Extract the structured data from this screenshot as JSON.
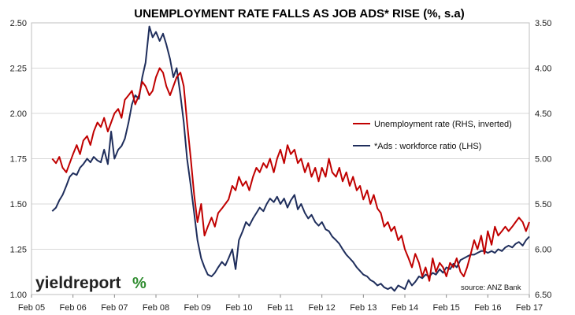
{
  "chart_data": {
    "type": "line",
    "title": "UNEMPLOYMENT RATE FALLS AS JOB ADS* RISE  (%, s.a)",
    "x_tick_labels": [
      "Feb 05",
      "Feb 06",
      "Feb 07",
      "Feb 08",
      "Feb 09",
      "Feb 10",
      "Feb 11",
      "Feb 12",
      "Feb 13",
      "Feb 14",
      "Feb 15",
      "Feb 16",
      "Feb 17"
    ],
    "x_range": [
      2005.08,
      2017.08
    ],
    "left_axis": {
      "ylim": [
        1.0,
        2.5
      ],
      "ticks": [
        "1.00",
        "1.25",
        "1.50",
        "1.75",
        "2.00",
        "2.25",
        "2.50"
      ]
    },
    "right_axis": {
      "ylim": [
        3.5,
        6.5
      ],
      "inverted": true,
      "ticks": [
        "3.50",
        "4.00",
        "4.50",
        "5.00",
        "5.50",
        "6.00",
        "6.50"
      ]
    },
    "legend_placement": "center-right",
    "source": "source: ANZ Bank",
    "logo": {
      "text": "yieldreport",
      "mark": "%"
    },
    "colors": {
      "unemployment": "#c00000",
      "ads": "#1f2e5c",
      "grid": "#d9d9d9",
      "logo_green": "#2e8b2e",
      "logo_red": "#cc2222"
    },
    "series": [
      {
        "name": "Unemployment rate (RHS, inverted)",
        "axis": "right",
        "color": "#c00000",
        "points": [
          [
            2005.58,
            5.0
          ],
          [
            2005.67,
            5.05
          ],
          [
            2005.75,
            4.98
          ],
          [
            2005.83,
            5.1
          ],
          [
            2005.92,
            5.15
          ],
          [
            2006.0,
            5.05
          ],
          [
            2006.08,
            4.95
          ],
          [
            2006.17,
            4.85
          ],
          [
            2006.25,
            4.95
          ],
          [
            2006.33,
            4.8
          ],
          [
            2006.42,
            4.75
          ],
          [
            2006.5,
            4.85
          ],
          [
            2006.58,
            4.7
          ],
          [
            2006.67,
            4.6
          ],
          [
            2006.75,
            4.65
          ],
          [
            2006.83,
            4.55
          ],
          [
            2006.92,
            4.7
          ],
          [
            2007.0,
            4.6
          ],
          [
            2007.08,
            4.5
          ],
          [
            2007.17,
            4.45
          ],
          [
            2007.25,
            4.55
          ],
          [
            2007.33,
            4.35
          ],
          [
            2007.42,
            4.3
          ],
          [
            2007.5,
            4.25
          ],
          [
            2007.58,
            4.4
          ],
          [
            2007.67,
            4.3
          ],
          [
            2007.75,
            4.15
          ],
          [
            2007.83,
            4.2
          ],
          [
            2007.92,
            4.3
          ],
          [
            2008.0,
            4.25
          ],
          [
            2008.08,
            4.1
          ],
          [
            2008.17,
            4.0
          ],
          [
            2008.25,
            4.05
          ],
          [
            2008.33,
            4.2
          ],
          [
            2008.42,
            4.3
          ],
          [
            2008.5,
            4.2
          ],
          [
            2008.58,
            4.1
          ],
          [
            2008.67,
            4.05
          ],
          [
            2008.75,
            4.2
          ],
          [
            2008.83,
            4.6
          ],
          [
            2008.92,
            5.0
          ],
          [
            2009.0,
            5.4
          ],
          [
            2009.08,
            5.7
          ],
          [
            2009.17,
            5.5
          ],
          [
            2009.25,
            5.85
          ],
          [
            2009.33,
            5.75
          ],
          [
            2009.42,
            5.65
          ],
          [
            2009.5,
            5.75
          ],
          [
            2009.58,
            5.6
          ],
          [
            2009.67,
            5.55
          ],
          [
            2009.75,
            5.5
          ],
          [
            2009.83,
            5.45
          ],
          [
            2009.92,
            5.3
          ],
          [
            2010.0,
            5.35
          ],
          [
            2010.08,
            5.2
          ],
          [
            2010.17,
            5.3
          ],
          [
            2010.25,
            5.25
          ],
          [
            2010.33,
            5.35
          ],
          [
            2010.42,
            5.2
          ],
          [
            2010.5,
            5.1
          ],
          [
            2010.58,
            5.15
          ],
          [
            2010.67,
            5.05
          ],
          [
            2010.75,
            5.1
          ],
          [
            2010.83,
            5.0
          ],
          [
            2010.92,
            5.15
          ],
          [
            2011.0,
            5.0
          ],
          [
            2011.08,
            4.9
          ],
          [
            2011.17,
            5.05
          ],
          [
            2011.25,
            4.85
          ],
          [
            2011.33,
            4.95
          ],
          [
            2011.42,
            4.9
          ],
          [
            2011.5,
            5.05
          ],
          [
            2011.58,
            5.0
          ],
          [
            2011.67,
            5.15
          ],
          [
            2011.75,
            5.05
          ],
          [
            2011.83,
            5.2
          ],
          [
            2011.92,
            5.1
          ],
          [
            2012.0,
            5.25
          ],
          [
            2012.08,
            5.1
          ],
          [
            2012.17,
            5.2
          ],
          [
            2012.25,
            5.0
          ],
          [
            2012.33,
            5.15
          ],
          [
            2012.42,
            5.2
          ],
          [
            2012.5,
            5.1
          ],
          [
            2012.58,
            5.25
          ],
          [
            2012.67,
            5.15
          ],
          [
            2012.75,
            5.3
          ],
          [
            2012.83,
            5.2
          ],
          [
            2012.92,
            5.35
          ],
          [
            2013.0,
            5.3
          ],
          [
            2013.08,
            5.45
          ],
          [
            2013.17,
            5.35
          ],
          [
            2013.25,
            5.5
          ],
          [
            2013.33,
            5.4
          ],
          [
            2013.42,
            5.55
          ],
          [
            2013.5,
            5.6
          ],
          [
            2013.58,
            5.75
          ],
          [
            2013.67,
            5.7
          ],
          [
            2013.75,
            5.8
          ],
          [
            2013.83,
            5.75
          ],
          [
            2013.92,
            5.9
          ],
          [
            2014.0,
            5.85
          ],
          [
            2014.08,
            6.0
          ],
          [
            2014.17,
            6.1
          ],
          [
            2014.25,
            6.2
          ],
          [
            2014.33,
            6.05
          ],
          [
            2014.42,
            6.15
          ],
          [
            2014.5,
            6.3
          ],
          [
            2014.58,
            6.2
          ],
          [
            2014.67,
            6.35
          ],
          [
            2014.75,
            6.1
          ],
          [
            2014.83,
            6.25
          ],
          [
            2014.92,
            6.15
          ],
          [
            2015.0,
            6.2
          ],
          [
            2015.08,
            6.3
          ],
          [
            2015.17,
            6.15
          ],
          [
            2015.25,
            6.2
          ],
          [
            2015.33,
            6.1
          ],
          [
            2015.42,
            6.25
          ],
          [
            2015.5,
            6.3
          ],
          [
            2015.58,
            6.2
          ],
          [
            2015.67,
            6.05
          ],
          [
            2015.75,
            5.9
          ],
          [
            2015.83,
            6.0
          ],
          [
            2015.92,
            5.85
          ],
          [
            2016.0,
            6.05
          ],
          [
            2016.08,
            5.8
          ],
          [
            2016.17,
            5.95
          ],
          [
            2016.25,
            5.75
          ],
          [
            2016.33,
            5.85
          ],
          [
            2016.42,
            5.8
          ],
          [
            2016.5,
            5.75
          ],
          [
            2016.58,
            5.8
          ],
          [
            2016.67,
            5.75
          ],
          [
            2016.75,
            5.7
          ],
          [
            2016.83,
            5.65
          ],
          [
            2016.92,
            5.7
          ],
          [
            2017.0,
            5.8
          ],
          [
            2017.08,
            5.7
          ]
        ]
      },
      {
        "name": "*Ads : workforce ratio (LHS)",
        "axis": "left",
        "color": "#1f2e5c",
        "points": [
          [
            2005.58,
            1.46
          ],
          [
            2005.67,
            1.48
          ],
          [
            2005.75,
            1.52
          ],
          [
            2005.83,
            1.55
          ],
          [
            2005.92,
            1.6
          ],
          [
            2006.0,
            1.65
          ],
          [
            2006.08,
            1.67
          ],
          [
            2006.17,
            1.66
          ],
          [
            2006.25,
            1.7
          ],
          [
            2006.33,
            1.72
          ],
          [
            2006.42,
            1.75
          ],
          [
            2006.5,
            1.73
          ],
          [
            2006.58,
            1.76
          ],
          [
            2006.67,
            1.74
          ],
          [
            2006.75,
            1.73
          ],
          [
            2006.83,
            1.8
          ],
          [
            2006.92,
            1.72
          ],
          [
            2007.0,
            1.9
          ],
          [
            2007.08,
            1.75
          ],
          [
            2007.17,
            1.8
          ],
          [
            2007.25,
            1.82
          ],
          [
            2007.33,
            1.86
          ],
          [
            2007.42,
            1.95
          ],
          [
            2007.5,
            2.05
          ],
          [
            2007.58,
            2.1
          ],
          [
            2007.67,
            2.08
          ],
          [
            2007.75,
            2.2
          ],
          [
            2007.83,
            2.28
          ],
          [
            2007.92,
            2.48
          ],
          [
            2008.0,
            2.42
          ],
          [
            2008.08,
            2.45
          ],
          [
            2008.17,
            2.4
          ],
          [
            2008.25,
            2.44
          ],
          [
            2008.33,
            2.38
          ],
          [
            2008.42,
            2.3
          ],
          [
            2008.5,
            2.2
          ],
          [
            2008.58,
            2.25
          ],
          [
            2008.67,
            2.1
          ],
          [
            2008.75,
            1.95
          ],
          [
            2008.83,
            1.75
          ],
          [
            2008.92,
            1.6
          ],
          [
            2009.0,
            1.45
          ],
          [
            2009.08,
            1.3
          ],
          [
            2009.17,
            1.2
          ],
          [
            2009.25,
            1.15
          ],
          [
            2009.33,
            1.11
          ],
          [
            2009.42,
            1.1
          ],
          [
            2009.5,
            1.12
          ],
          [
            2009.58,
            1.15
          ],
          [
            2009.67,
            1.18
          ],
          [
            2009.75,
            1.16
          ],
          [
            2009.83,
            1.2
          ],
          [
            2009.92,
            1.25
          ],
          [
            2010.0,
            1.14
          ],
          [
            2010.08,
            1.3
          ],
          [
            2010.17,
            1.35
          ],
          [
            2010.25,
            1.4
          ],
          [
            2010.33,
            1.38
          ],
          [
            2010.42,
            1.42
          ],
          [
            2010.5,
            1.45
          ],
          [
            2010.58,
            1.48
          ],
          [
            2010.67,
            1.46
          ],
          [
            2010.75,
            1.5
          ],
          [
            2010.83,
            1.53
          ],
          [
            2010.92,
            1.51
          ],
          [
            2011.0,
            1.54
          ],
          [
            2011.08,
            1.5
          ],
          [
            2011.17,
            1.53
          ],
          [
            2011.25,
            1.48
          ],
          [
            2011.33,
            1.52
          ],
          [
            2011.42,
            1.55
          ],
          [
            2011.5,
            1.47
          ],
          [
            2011.58,
            1.5
          ],
          [
            2011.67,
            1.45
          ],
          [
            2011.75,
            1.42
          ],
          [
            2011.83,
            1.44
          ],
          [
            2011.92,
            1.4
          ],
          [
            2012.0,
            1.38
          ],
          [
            2012.08,
            1.4
          ],
          [
            2012.17,
            1.36
          ],
          [
            2012.25,
            1.35
          ],
          [
            2012.33,
            1.32
          ],
          [
            2012.42,
            1.3
          ],
          [
            2012.5,
            1.28
          ],
          [
            2012.58,
            1.25
          ],
          [
            2012.67,
            1.22
          ],
          [
            2012.75,
            1.2
          ],
          [
            2012.83,
            1.18
          ],
          [
            2012.92,
            1.15
          ],
          [
            2013.0,
            1.13
          ],
          [
            2013.08,
            1.11
          ],
          [
            2013.17,
            1.1
          ],
          [
            2013.25,
            1.08
          ],
          [
            2013.33,
            1.07
          ],
          [
            2013.42,
            1.05
          ],
          [
            2013.5,
            1.06
          ],
          [
            2013.58,
            1.04
          ],
          [
            2013.67,
            1.03
          ],
          [
            2013.75,
            1.04
          ],
          [
            2013.83,
            1.02
          ],
          [
            2013.92,
            1.05
          ],
          [
            2014.0,
            1.04
          ],
          [
            2014.08,
            1.03
          ],
          [
            2014.17,
            1.08
          ],
          [
            2014.25,
            1.05
          ],
          [
            2014.33,
            1.07
          ],
          [
            2014.42,
            1.1
          ],
          [
            2014.5,
            1.09
          ],
          [
            2014.58,
            1.11
          ],
          [
            2014.67,
            1.1
          ],
          [
            2014.75,
            1.12
          ],
          [
            2014.83,
            1.11
          ],
          [
            2014.92,
            1.14
          ],
          [
            2015.0,
            1.12
          ],
          [
            2015.08,
            1.15
          ],
          [
            2015.17,
            1.14
          ],
          [
            2015.25,
            1.17
          ],
          [
            2015.33,
            1.15
          ],
          [
            2015.42,
            1.19
          ],
          [
            2015.5,
            1.2
          ],
          [
            2015.58,
            1.21
          ],
          [
            2015.67,
            1.22
          ],
          [
            2015.75,
            1.22
          ],
          [
            2015.83,
            1.23
          ],
          [
            2015.92,
            1.24
          ],
          [
            2016.0,
            1.24
          ],
          [
            2016.08,
            1.23
          ],
          [
            2016.17,
            1.24
          ],
          [
            2016.25,
            1.23
          ],
          [
            2016.33,
            1.25
          ],
          [
            2016.42,
            1.24
          ],
          [
            2016.5,
            1.26
          ],
          [
            2016.58,
            1.27
          ],
          [
            2016.67,
            1.26
          ],
          [
            2016.75,
            1.28
          ],
          [
            2016.83,
            1.29
          ],
          [
            2016.92,
            1.27
          ],
          [
            2017.0,
            1.3
          ],
          [
            2017.08,
            1.32
          ]
        ]
      }
    ]
  }
}
